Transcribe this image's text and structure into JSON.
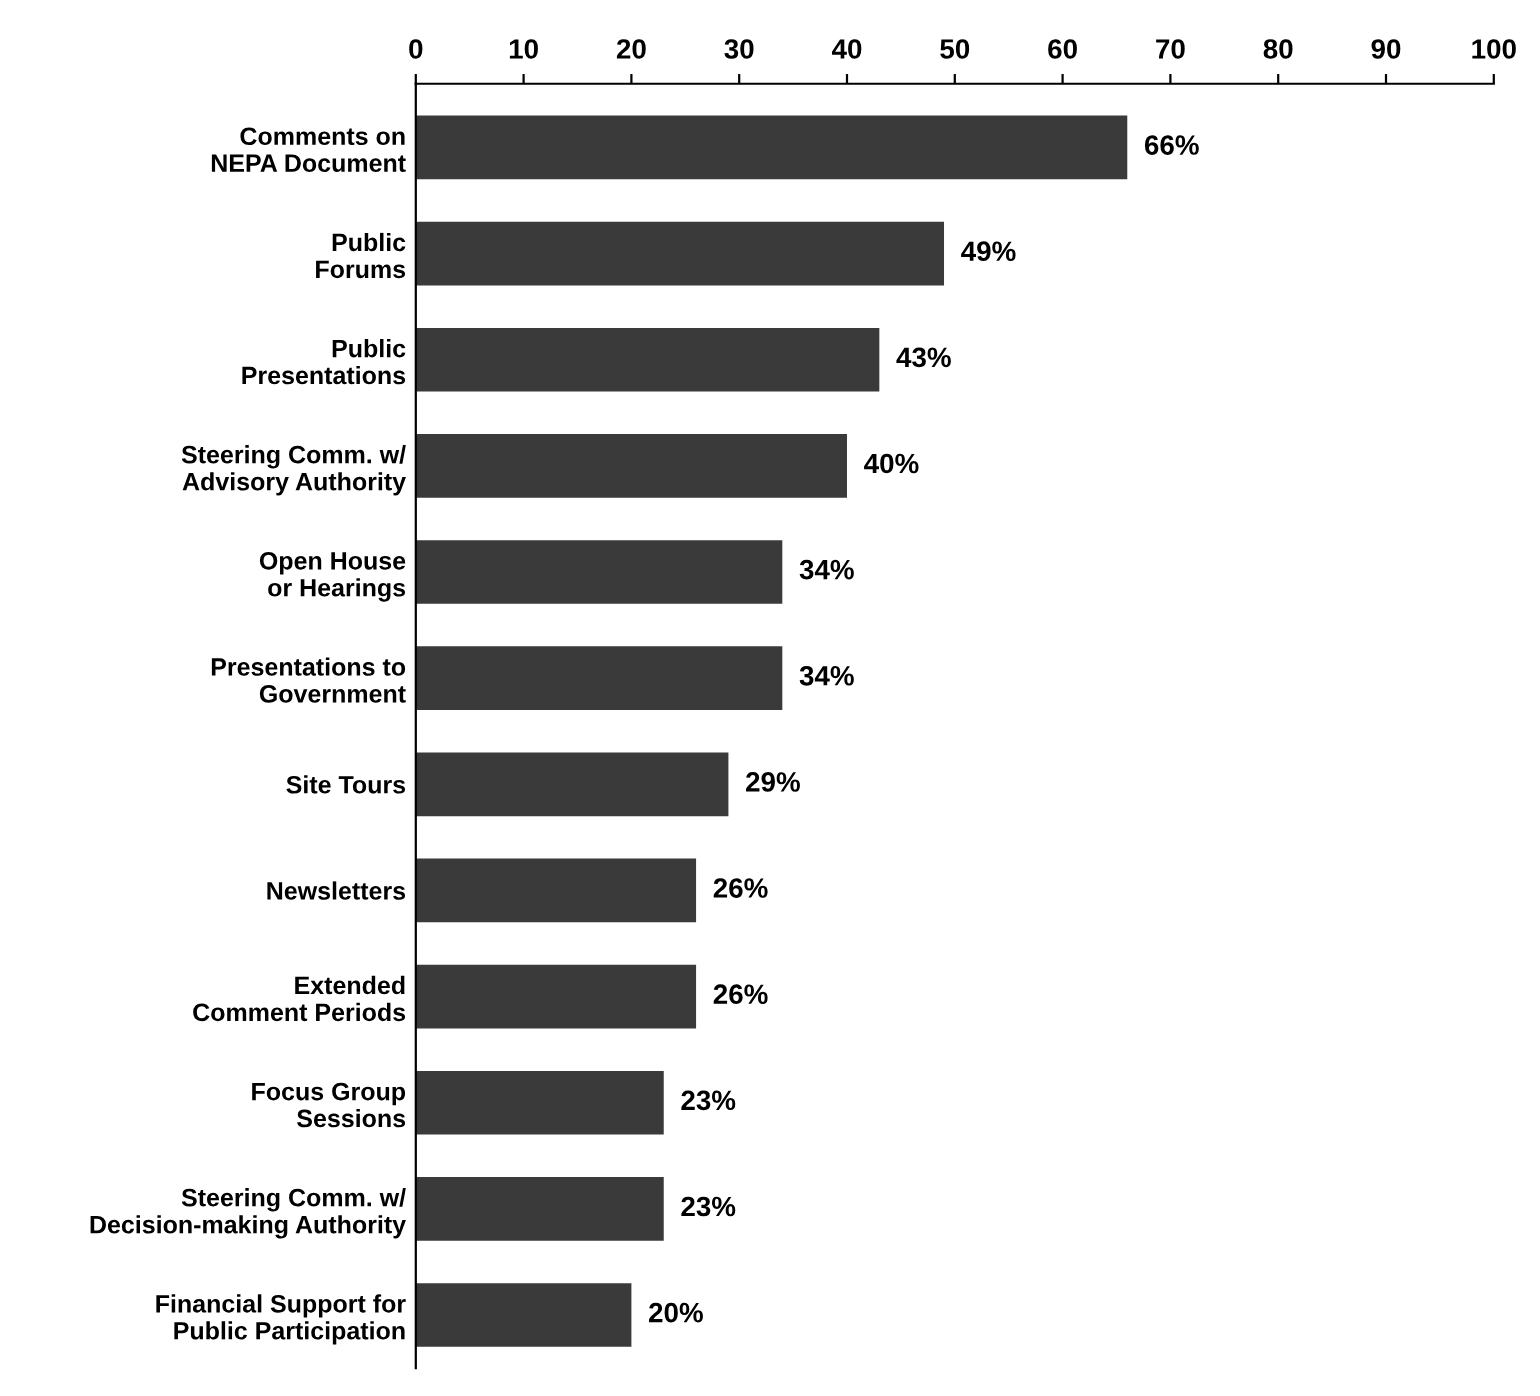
{
  "chart_data": {
    "type": "bar",
    "orientation": "horizontal",
    "categories": [
      "Comments on\nNEPA Document",
      "Public\nForums",
      "Public\nPresentations",
      "Steering Comm. w/\nAdvisory Authority",
      "Open House\nor Hearings",
      "Presentations to\nGovernment",
      "Site Tours",
      "Newsletters",
      "Extended\nComment Periods",
      "Focus Group\nSessions",
      "Steering Comm. w/\nDecision-making Authority",
      "Financial Support for\nPublic Participation"
    ],
    "values": [
      66,
      49,
      43,
      40,
      34,
      34,
      29,
      26,
      26,
      23,
      23,
      20
    ],
    "value_labels": [
      "66%",
      "49%",
      "43%",
      "40%",
      "34%",
      "34%",
      "29%",
      "26%",
      "26%",
      "23%",
      "23%",
      "20%"
    ],
    "color": "#3a3a3a",
    "xlim": [
      0,
      100
    ],
    "xticks": [
      0,
      10,
      20,
      30,
      40,
      50,
      60,
      70,
      80,
      90,
      100
    ],
    "grid": false,
    "legend": false
  }
}
